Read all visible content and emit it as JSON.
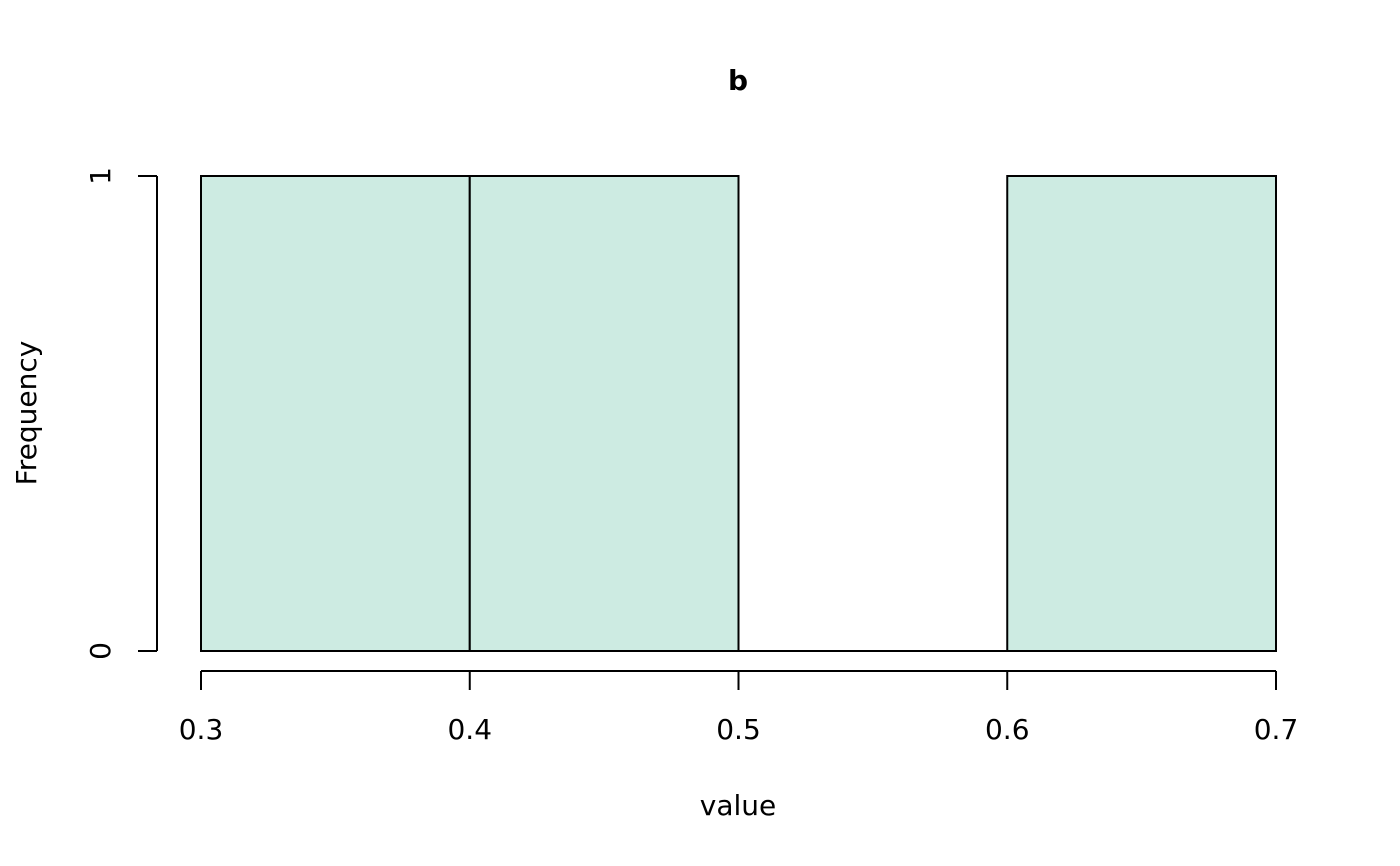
{
  "chart_data": {
    "type": "bar",
    "title": "b",
    "xlabel": "value",
    "ylabel": "Frequency",
    "bins": [
      {
        "from": 0.3,
        "to": 0.4,
        "count": 1
      },
      {
        "from": 0.4,
        "to": 0.5,
        "count": 1
      },
      {
        "from": 0.5,
        "to": 0.6,
        "count": 0
      },
      {
        "from": 0.6,
        "to": 0.7,
        "count": 1
      }
    ],
    "xlim": [
      0.3,
      0.7
    ],
    "ylim": [
      0,
      1
    ],
    "x_ticks": [
      "0.3",
      "0.4",
      "0.5",
      "0.6",
      "0.7"
    ],
    "y_ticks": [
      "0",
      "1"
    ],
    "bar_color": "#cdebe2",
    "grid": false
  }
}
